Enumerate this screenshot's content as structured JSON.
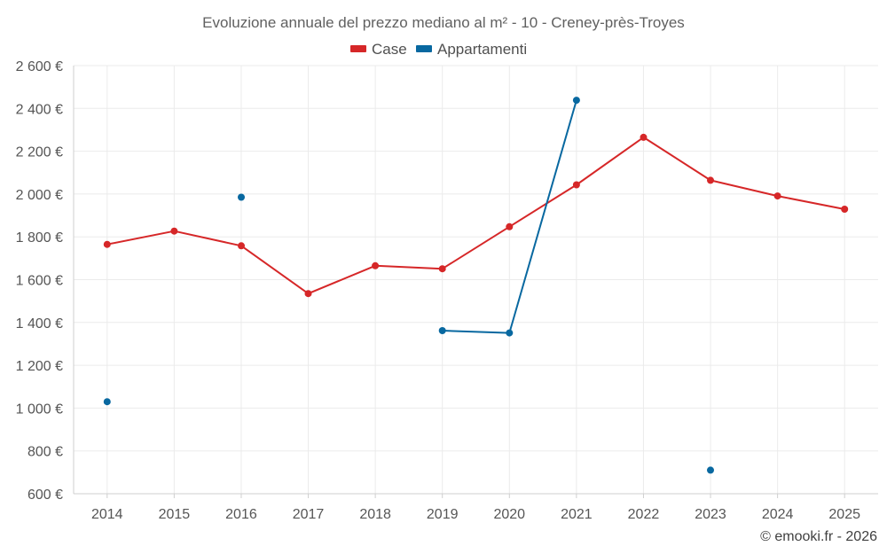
{
  "chart_data": {
    "type": "line",
    "title": "Evoluzione annuale del prezzo mediano al m² - 10 - Creney-près-Troyes",
    "categories": [
      "2014",
      "2015",
      "2016",
      "2017",
      "2018",
      "2019",
      "2020",
      "2021",
      "2022",
      "2023",
      "2024",
      "2025"
    ],
    "ylim": [
      600,
      2600
    ],
    "yticks": [
      600,
      800,
      1000,
      1200,
      1400,
      1600,
      1800,
      2000,
      2200,
      2400,
      2600
    ],
    "ytick_labels": [
      "600 €",
      "800 €",
      "1 000 €",
      "1 200 €",
      "1 400 €",
      "1 600 €",
      "1 800 €",
      "2 000 €",
      "2 200 €",
      "2 400 €",
      "2 600 €"
    ],
    "grid": true,
    "legend_position": "top-center",
    "series": [
      {
        "name": "Case",
        "color": "#d62728",
        "values": [
          1765,
          1827,
          1758,
          1535,
          1665,
          1651,
          1847,
          2043,
          2265,
          2064,
          1991,
          1929
        ]
      },
      {
        "name": "Appartamenti",
        "color": "#0868a0",
        "values": [
          1030,
          null,
          1985,
          null,
          null,
          1362,
          1351,
          2438,
          null,
          710,
          null,
          null
        ]
      }
    ],
    "credit": "© emooki.fr - 2026"
  }
}
